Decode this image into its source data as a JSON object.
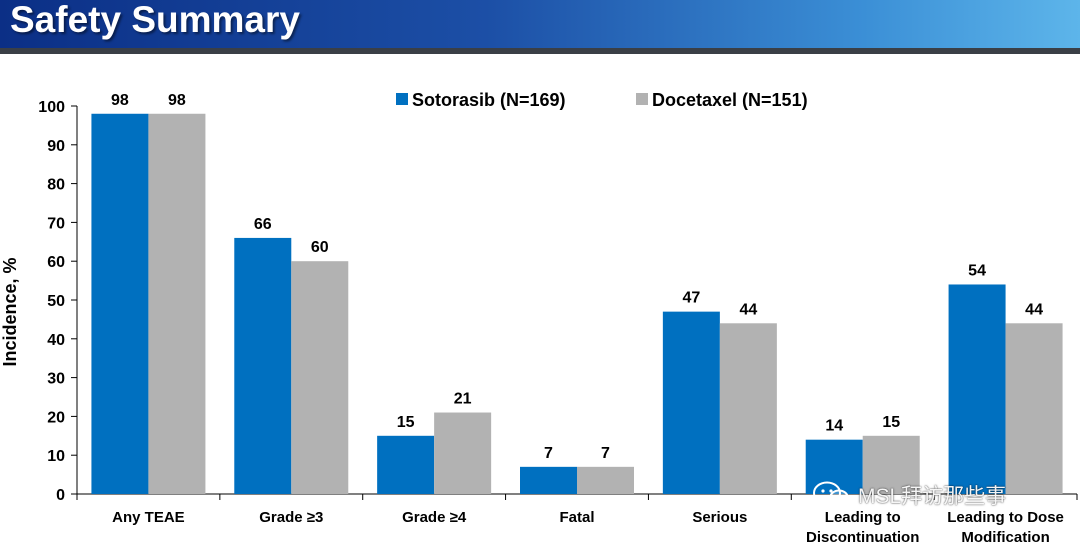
{
  "header": {
    "title": "Safety Summary"
  },
  "colors": {
    "sotorasib": "#0070c0",
    "docetaxel": "#b2b2b2",
    "header_start": "#0b2f86",
    "header_end": "#5db5ea"
  },
  "chart_data": {
    "type": "bar",
    "title": "",
    "xlabel": "",
    "ylabel": "Incidence, %",
    "ylim": [
      0,
      100
    ],
    "yticks": [
      0,
      10,
      20,
      30,
      40,
      50,
      60,
      70,
      80,
      90,
      100
    ],
    "categories": [
      [
        "Any TEAE"
      ],
      [
        "Grade ≥3"
      ],
      [
        "Grade ≥4"
      ],
      [
        "Fatal"
      ],
      [
        "Serious"
      ],
      [
        "Leading to",
        "Discontinuation"
      ],
      [
        "Leading to Dose",
        "Modification"
      ]
    ],
    "series": [
      {
        "name": "Sotorasib (N=169)",
        "color": "#0070c0",
        "values": [
          98,
          66,
          15,
          7,
          47,
          14,
          54
        ]
      },
      {
        "name": "Docetaxel (N=151)",
        "color": "#b2b2b2",
        "values": [
          98,
          60,
          21,
          7,
          44,
          15,
          44
        ]
      }
    ],
    "legend_position": "top-right",
    "grid": false
  },
  "watermark": {
    "text": "MSL拜访那些事",
    "icon": "wechat-icon"
  }
}
